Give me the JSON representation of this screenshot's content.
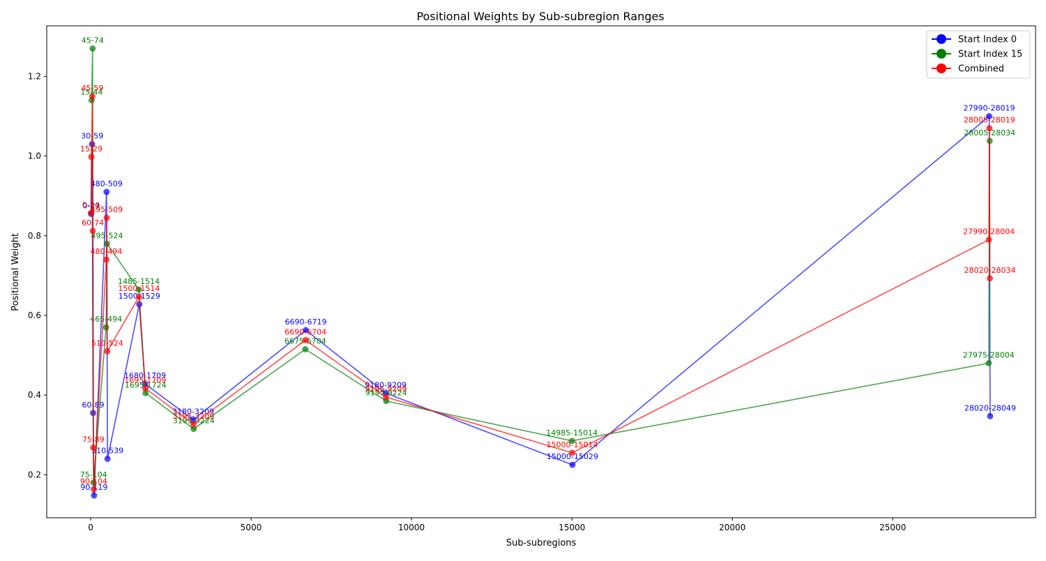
{
  "colors": {
    "start0": "#0000ff",
    "start15": "#008000",
    "combined": "#ff0000",
    "axis": "#000000",
    "background": "#ffffff"
  },
  "chart_data": {
    "type": "line",
    "title": "Positional Weights by Sub-subregion Ranges",
    "xlabel": "Sub-subregions",
    "ylabel": "Positional Weight",
    "xlim": [
      -1370,
      29450
    ],
    "ylim": [
      0.092,
      1.327
    ],
    "xticks": [
      0,
      5000,
      10000,
      15000,
      20000,
      25000
    ],
    "yticks": [
      0.2,
      0.4,
      0.6,
      0.8,
      1.0,
      1.2
    ],
    "xtick_labels": [
      "0",
      "5000",
      "10000",
      "15000",
      "20000",
      "25000"
    ],
    "ytick_labels": [
      "0.2",
      "0.4",
      "0.6",
      "0.8",
      "1.0",
      "1.2"
    ],
    "grid": false,
    "legend_position": "top-right",
    "series": [
      {
        "name": "Start Index 0",
        "color": "#0000ff",
        "points": [
          {
            "x": 15,
            "y": 0.855,
            "label": "0-29"
          },
          {
            "x": 45,
            "y": 1.03,
            "label": "30-59"
          },
          {
            "x": 75,
            "y": 0.355,
            "label": "60-89"
          },
          {
            "x": 105,
            "y": 0.148,
            "label": "90-119"
          },
          {
            "x": 495,
            "y": 0.91,
            "label": "480-509"
          },
          {
            "x": 525,
            "y": 0.24,
            "label": "510-539"
          },
          {
            "x": 1515,
            "y": 0.628,
            "label": "1500-1529"
          },
          {
            "x": 1695,
            "y": 0.428,
            "label": "1680-1709"
          },
          {
            "x": 3195,
            "y": 0.338,
            "label": "3180-3209"
          },
          {
            "x": 6705,
            "y": 0.563,
            "label": "6690-6719"
          },
          {
            "x": 9195,
            "y": 0.405,
            "label": "9180-9209"
          },
          {
            "x": 15015,
            "y": 0.225,
            "label": "15000-15029"
          },
          {
            "x": 28005,
            "y": 1.1,
            "label": "27990-28019"
          },
          {
            "x": 28035,
            "y": 0.347,
            "label": "28020-28049"
          }
        ]
      },
      {
        "name": "Start Index 15",
        "color": "#008000",
        "points": [
          {
            "x": 30,
            "y": 1.14,
            "label": "15-44"
          },
          {
            "x": 60,
            "y": 1.27,
            "label": "45-74"
          },
          {
            "x": 90,
            "y": 0.18,
            "label": "75-104"
          },
          {
            "x": 480,
            "y": 0.57,
            "label": "465-494"
          },
          {
            "x": 510,
            "y": 0.78,
            "label": "495-524"
          },
          {
            "x": 1500,
            "y": 0.665,
            "label": "1485-1514"
          },
          {
            "x": 1710,
            "y": 0.405,
            "label": "1695-1724"
          },
          {
            "x": 3210,
            "y": 0.315,
            "label": "3195-3224"
          },
          {
            "x": 6690,
            "y": 0.515,
            "label": "6675-6704"
          },
          {
            "x": 9210,
            "y": 0.385,
            "label": "9195-9224"
          },
          {
            "x": 15000,
            "y": 0.285,
            "label": "14985-15014"
          },
          {
            "x": 27990,
            "y": 0.48,
            "label": "27975-28004"
          },
          {
            "x": 28020,
            "y": 1.038,
            "label": "28005-28034"
          }
        ]
      },
      {
        "name": "Combined",
        "color": "#ff0000",
        "points": [
          {
            "x": 7,
            "y": 0.857,
            "label": "0-14"
          },
          {
            "x": 22,
            "y": 0.998,
            "label": "15-29"
          },
          {
            "x": 52,
            "y": 1.15,
            "label": "45-59"
          },
          {
            "x": 67,
            "y": 0.812,
            "label": "60-74"
          },
          {
            "x": 82,
            "y": 0.268,
            "label": "75-89"
          },
          {
            "x": 97,
            "y": 0.163,
            "label": "90-104"
          },
          {
            "x": 487,
            "y": 0.74,
            "label": "480-494"
          },
          {
            "x": 502,
            "y": 0.845,
            "label": "495-509"
          },
          {
            "x": 517,
            "y": 0.51,
            "label": "510-524"
          },
          {
            "x": 1507,
            "y": 0.647,
            "label": "1500-1514"
          },
          {
            "x": 1702,
            "y": 0.417,
            "label": "1695-1709"
          },
          {
            "x": 3202,
            "y": 0.327,
            "label": "3195-3209"
          },
          {
            "x": 6697,
            "y": 0.538,
            "label": "6690-6704"
          },
          {
            "x": 9202,
            "y": 0.395,
            "label": "9195-9209"
          },
          {
            "x": 15007,
            "y": 0.255,
            "label": "15000-15014"
          },
          {
            "x": 27997,
            "y": 0.79,
            "label": "27990-28004"
          },
          {
            "x": 28012,
            "y": 1.07,
            "label": "28005-28019"
          },
          {
            "x": 28027,
            "y": 0.693,
            "label": "28020-28034"
          }
        ]
      }
    ]
  }
}
